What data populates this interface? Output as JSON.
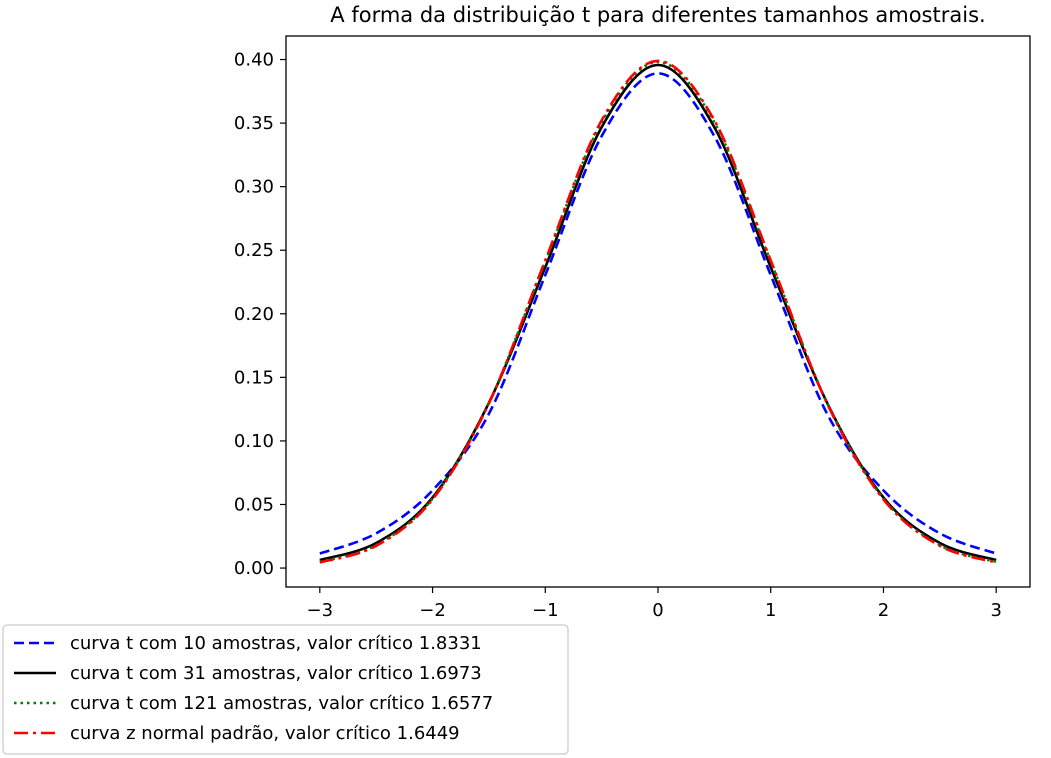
{
  "chart_data": {
    "type": "line",
    "title": "A forma da distribuição t para diferentes tamanhos amostrais.",
    "xlabel": "",
    "ylabel": "",
    "xlim": [
      -3.3,
      3.3
    ],
    "ylim": [
      -0.0149,
      0.4185
    ],
    "x_ticks": [
      -3,
      -2,
      -1,
      0,
      1,
      2,
      3
    ],
    "x_tick_labels": [
      "−3",
      "−2",
      "−1",
      "0",
      "1",
      "2",
      "3"
    ],
    "y_ticks": [
      0.0,
      0.05,
      0.1,
      0.15,
      0.2,
      0.25,
      0.3,
      0.35,
      0.4
    ],
    "y_tick_labels": [
      "0.00",
      "0.05",
      "0.10",
      "0.15",
      "0.20",
      "0.25",
      "0.30",
      "0.35",
      "0.40"
    ],
    "grid": false,
    "legend_position": "below-left",
    "x": [
      -3.0,
      -2.5,
      -2.0,
      -1.5,
      -1.0,
      -0.5,
      0.0,
      0.5,
      1.0,
      1.5,
      2.0,
      2.5,
      3.0
    ],
    "series": [
      {
        "name": "curva t com 10 amostras, valor crítico 1.8331",
        "color": "#0000ff",
        "dash": "dashed",
        "values": [
          0.0114,
          0.0273,
          0.0611,
          0.1214,
          0.2304,
          0.3397,
          0.3891,
          0.3397,
          0.2304,
          0.1214,
          0.0611,
          0.0273,
          0.0114
        ]
      },
      {
        "name": "curva t com 31 amostras, valor crítico 1.6973",
        "color": "#000000",
        "dash": "solid",
        "values": [
          0.0063,
          0.0197,
          0.0555,
          0.13,
          0.2366,
          0.3467,
          0.3957,
          0.3467,
          0.2366,
          0.13,
          0.0555,
          0.0197,
          0.0063
        ]
      },
      {
        "name": "curva t com 121 amostras, valor crítico 1.6577",
        "color": "#008000",
        "dash": "dotted",
        "values": [
          0.0049,
          0.018,
          0.0546,
          0.13,
          0.2411,
          0.3506,
          0.3981,
          0.3506,
          0.2411,
          0.13,
          0.0546,
          0.018,
          0.0049
        ]
      },
      {
        "name": "curva z normal padrão, valor crítico 1.6449",
        "color": "#ff0000",
        "dash": "dashdot",
        "values": [
          0.0044,
          0.0175,
          0.054,
          0.1295,
          0.242,
          0.3521,
          0.3989,
          0.3521,
          0.242,
          0.1295,
          0.054,
          0.0175,
          0.0044
        ]
      }
    ]
  }
}
